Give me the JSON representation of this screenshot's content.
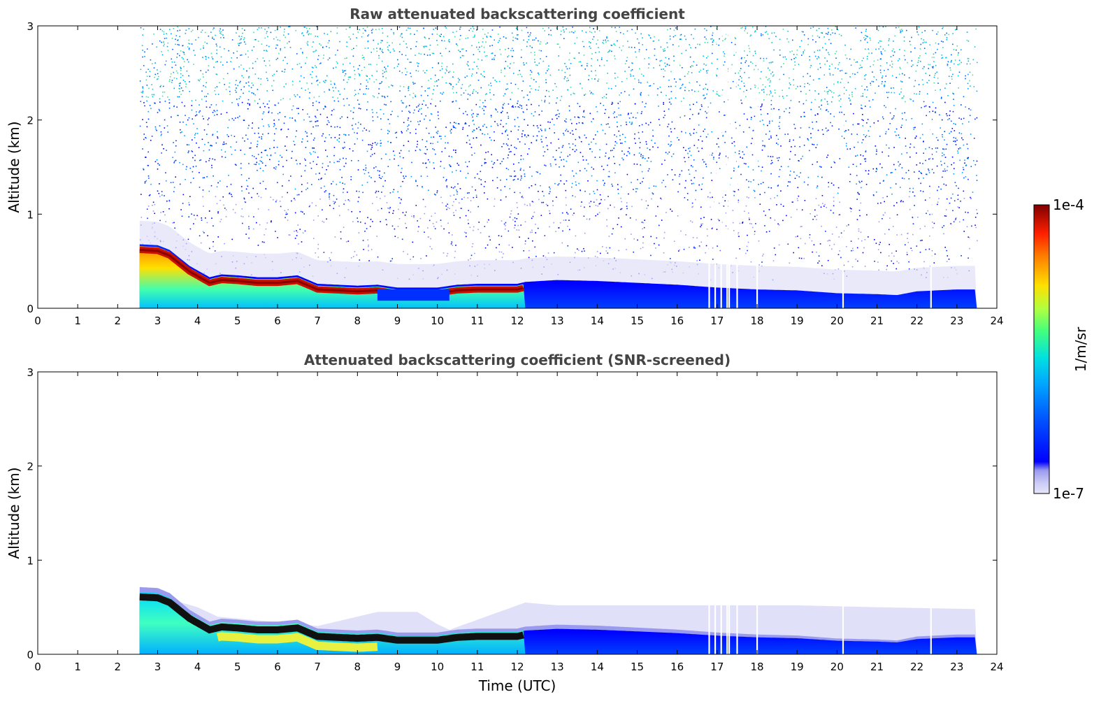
{
  "chart_data": [
    {
      "type": "heatmap",
      "title": "Raw attenuated backscattering coefficient",
      "xlabel": "",
      "ylabel": "Altitude (km)",
      "xlim": [
        0,
        24
      ],
      "ylim": [
        0,
        3
      ],
      "xticks": [
        "0",
        "1",
        "2",
        "3",
        "4",
        "5",
        "6",
        "7",
        "8",
        "9",
        "10",
        "11",
        "12",
        "13",
        "14",
        "15",
        "16",
        "17",
        "18",
        "19",
        "20",
        "21",
        "22",
        "23",
        "24"
      ],
      "yticks": [
        "0",
        "1",
        "2",
        "3"
      ],
      "data_extent": {
        "x": [
          2.55,
          23.5
        ],
        "y": [
          0,
          3
        ]
      },
      "boundary_layer_top_km": {
        "x": [
          2.55,
          3.0,
          3.3,
          3.8,
          4.3,
          4.6,
          5.0,
          5.5,
          6.0,
          6.5,
          7.0,
          7.5,
          8.0,
          8.5,
          9.0,
          10.0,
          10.5,
          11.0,
          12.0,
          12.2,
          13.0,
          14.0,
          15.0,
          16.0,
          17.0,
          18.0,
          19.0,
          20.0,
          21.0,
          21.5,
          22.0,
          23.0,
          23.5
        ],
        "y": [
          0.68,
          0.67,
          0.62,
          0.45,
          0.33,
          0.36,
          0.35,
          0.33,
          0.33,
          0.35,
          0.26,
          0.25,
          0.24,
          0.25,
          0.22,
          0.22,
          0.25,
          0.26,
          0.26,
          0.28,
          0.3,
          0.29,
          0.27,
          0.25,
          0.22,
          0.2,
          0.19,
          0.16,
          0.15,
          0.14,
          0.18,
          0.2,
          0.2
        ]
      },
      "data_gaps_utc": [
        16.8,
        16.95,
        17.1,
        17.25,
        17.3,
        17.5,
        18.0,
        20.15,
        22.35
      ]
    },
    {
      "type": "heatmap",
      "title": "Attenuated backscattering coefficient (SNR-screened)",
      "xlabel": "Time (UTC)",
      "ylabel": "Altitude (km)",
      "xlim": [
        0,
        24
      ],
      "ylim": [
        0,
        3
      ],
      "xticks": [
        "0",
        "1",
        "2",
        "3",
        "4",
        "5",
        "6",
        "7",
        "8",
        "9",
        "10",
        "11",
        "12",
        "13",
        "14",
        "15",
        "16",
        "17",
        "18",
        "19",
        "20",
        "21",
        "22",
        "23",
        "24"
      ],
      "yticks": [
        "0",
        "1",
        "2",
        "3"
      ],
      "data_extent": {
        "x": [
          2.55,
          23.5
        ],
        "y": [
          0,
          0.7
        ]
      },
      "screened_haze_top_km": {
        "x": [
          2.55,
          4.0,
          4.5,
          7.0,
          8.5,
          9.5,
          10.0,
          10.3,
          12.2,
          13.0,
          16.0,
          19.0,
          21.0,
          23.5
        ],
        "y": [
          0.68,
          0.5,
          0.4,
          0.3,
          0.45,
          0.45,
          0.32,
          0.26,
          0.55,
          0.52,
          0.52,
          0.52,
          0.5,
          0.48
        ]
      },
      "data_gaps_utc": [
        16.8,
        16.95,
        17.1,
        17.25,
        17.3,
        17.5,
        18.0,
        20.15,
        22.35
      ]
    }
  ],
  "colorbar": {
    "label": "1/m/sr",
    "max_label": "1e-4",
    "min_label": "1e-7",
    "scale": "log",
    "range": [
      1e-07,
      0.0001
    ],
    "colors": [
      "#e6e6fa",
      "#c8c8f5",
      "#9a9aee",
      "#0000ff",
      "#0050ff",
      "#00a6ff",
      "#00e0e0",
      "#40ff80",
      "#b0ff40",
      "#ffe000",
      "#ff8000",
      "#ff2000",
      "#a00000",
      "#7f0000"
    ]
  }
}
